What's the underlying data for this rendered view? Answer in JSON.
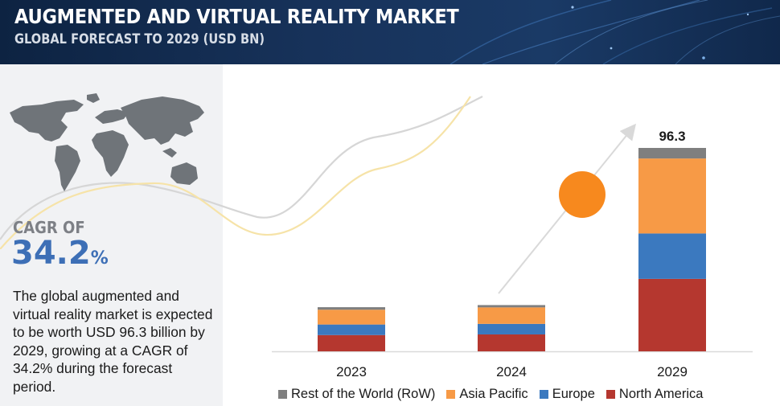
{
  "header": {
    "title": "AUGMENTED AND VIRTUAL REALITY MARKET",
    "subtitle": "GLOBAL FORECAST TO 2029 (USD BN)"
  },
  "summary": {
    "cagr_label": "CAGR OF",
    "cagr_value": "34.2",
    "cagr_unit": "%",
    "description": "The global augmented and virtual reality market is expected to be worth USD 96.3 billion by 2029, growing at a CAGR of 34.2% during the forecast period."
  },
  "icons": [
    "world-map-icon",
    "growth-arrow-icon"
  ],
  "colors": {
    "header_bg": "#17325a",
    "accent_blue": "#3d6fb6",
    "bubble_orange": "#f7891e",
    "rest_of_world": "#7f7f7f",
    "asia_pacific": "#f79a46",
    "europe": "#3b79bf",
    "north_america": "#b5372f"
  },
  "chart_data": {
    "type": "bar",
    "stacked": true,
    "categories": [
      "2023",
      "2024",
      "2029"
    ],
    "series": [
      {
        "name": "North America",
        "color": "#b5372f",
        "values": [
          7.7,
          8.0,
          34.3
        ]
      },
      {
        "name": "Europe",
        "color": "#3b79bf",
        "values": [
          5.0,
          5.0,
          21.5
        ]
      },
      {
        "name": "Asia Pacific",
        "color": "#f79a46",
        "values": [
          7.0,
          7.8,
          35.5
        ]
      },
      {
        "name": "Rest of the World (RoW)",
        "color": "#7f7f7f",
        "values": [
          1.2,
          1.1,
          5.0
        ]
      }
    ],
    "data_labels": [
      {
        "category": "2029",
        "text": "96.3"
      }
    ],
    "legend_order": [
      "Rest of the World (RoW)",
      "Asia Pacific",
      "Europe",
      "North America"
    ],
    "legend_position": "bottom",
    "ylim": [
      0,
      96.3
    ],
    "grid": false,
    "title": "",
    "xlabel": "",
    "ylabel": ""
  }
}
